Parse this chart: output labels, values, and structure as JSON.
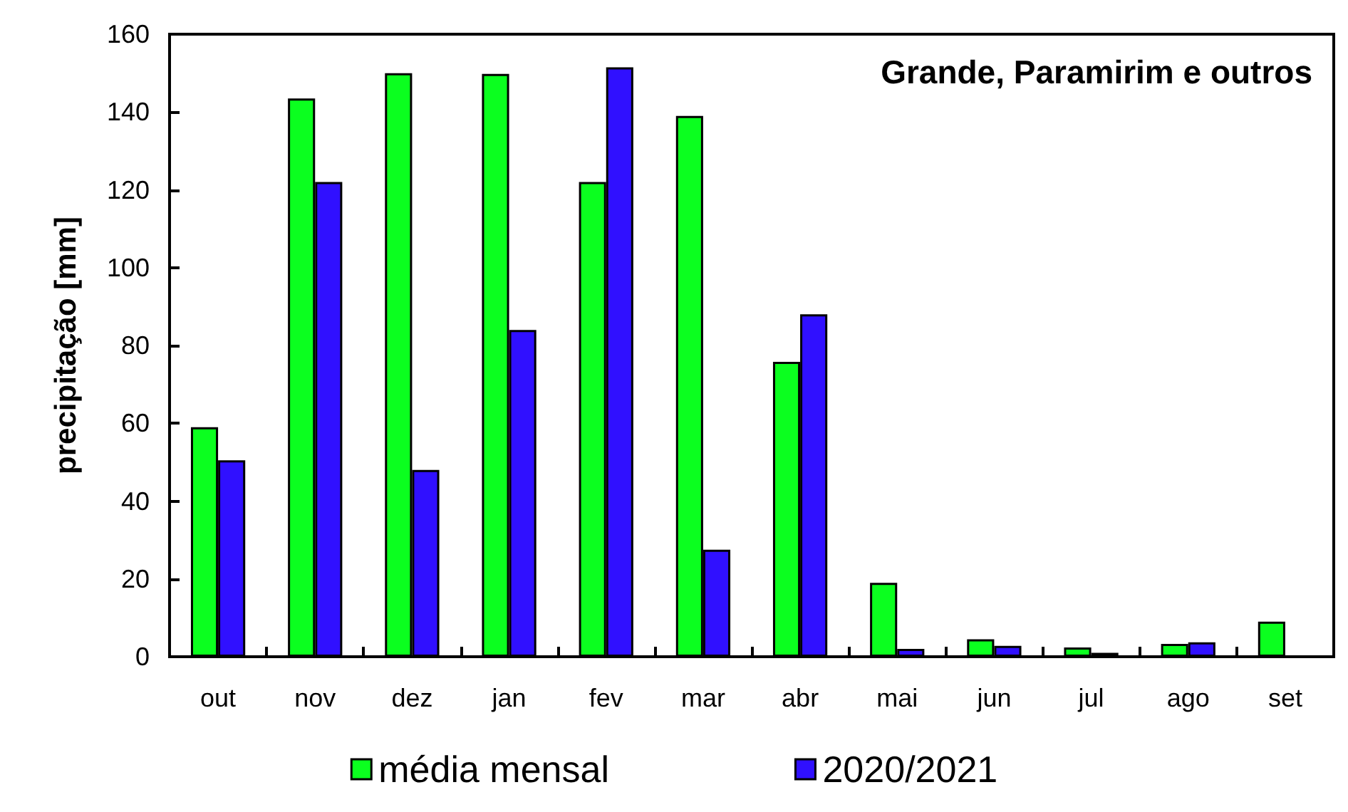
{
  "chart_data": {
    "type": "bar",
    "title": "Grande, Paramirim e outros",
    "ylabel": "precipitação [mm]",
    "categories": [
      "out",
      "nov",
      "dez",
      "jan",
      "fev",
      "mar",
      "abr",
      "mai",
      "jun",
      "jul",
      "ago",
      "set"
    ],
    "series": [
      {
        "name": "média mensal",
        "color": "#0bff1f",
        "values": [
          59,
          143.5,
          150,
          149.8,
          122,
          139,
          75.8,
          19,
          4.5,
          2.4,
          3.3,
          9
        ]
      },
      {
        "name": "2020/2021",
        "color": "#3010ff",
        "values": [
          50.5,
          122,
          48,
          84,
          151.5,
          27.5,
          88,
          2,
          2.8,
          1,
          3.7,
          null
        ]
      }
    ],
    "ylim": [
      0,
      160
    ],
    "yticks": [
      0,
      20,
      40,
      60,
      80,
      100,
      120,
      140,
      160
    ],
    "grid": false,
    "legend": "bottom"
  }
}
